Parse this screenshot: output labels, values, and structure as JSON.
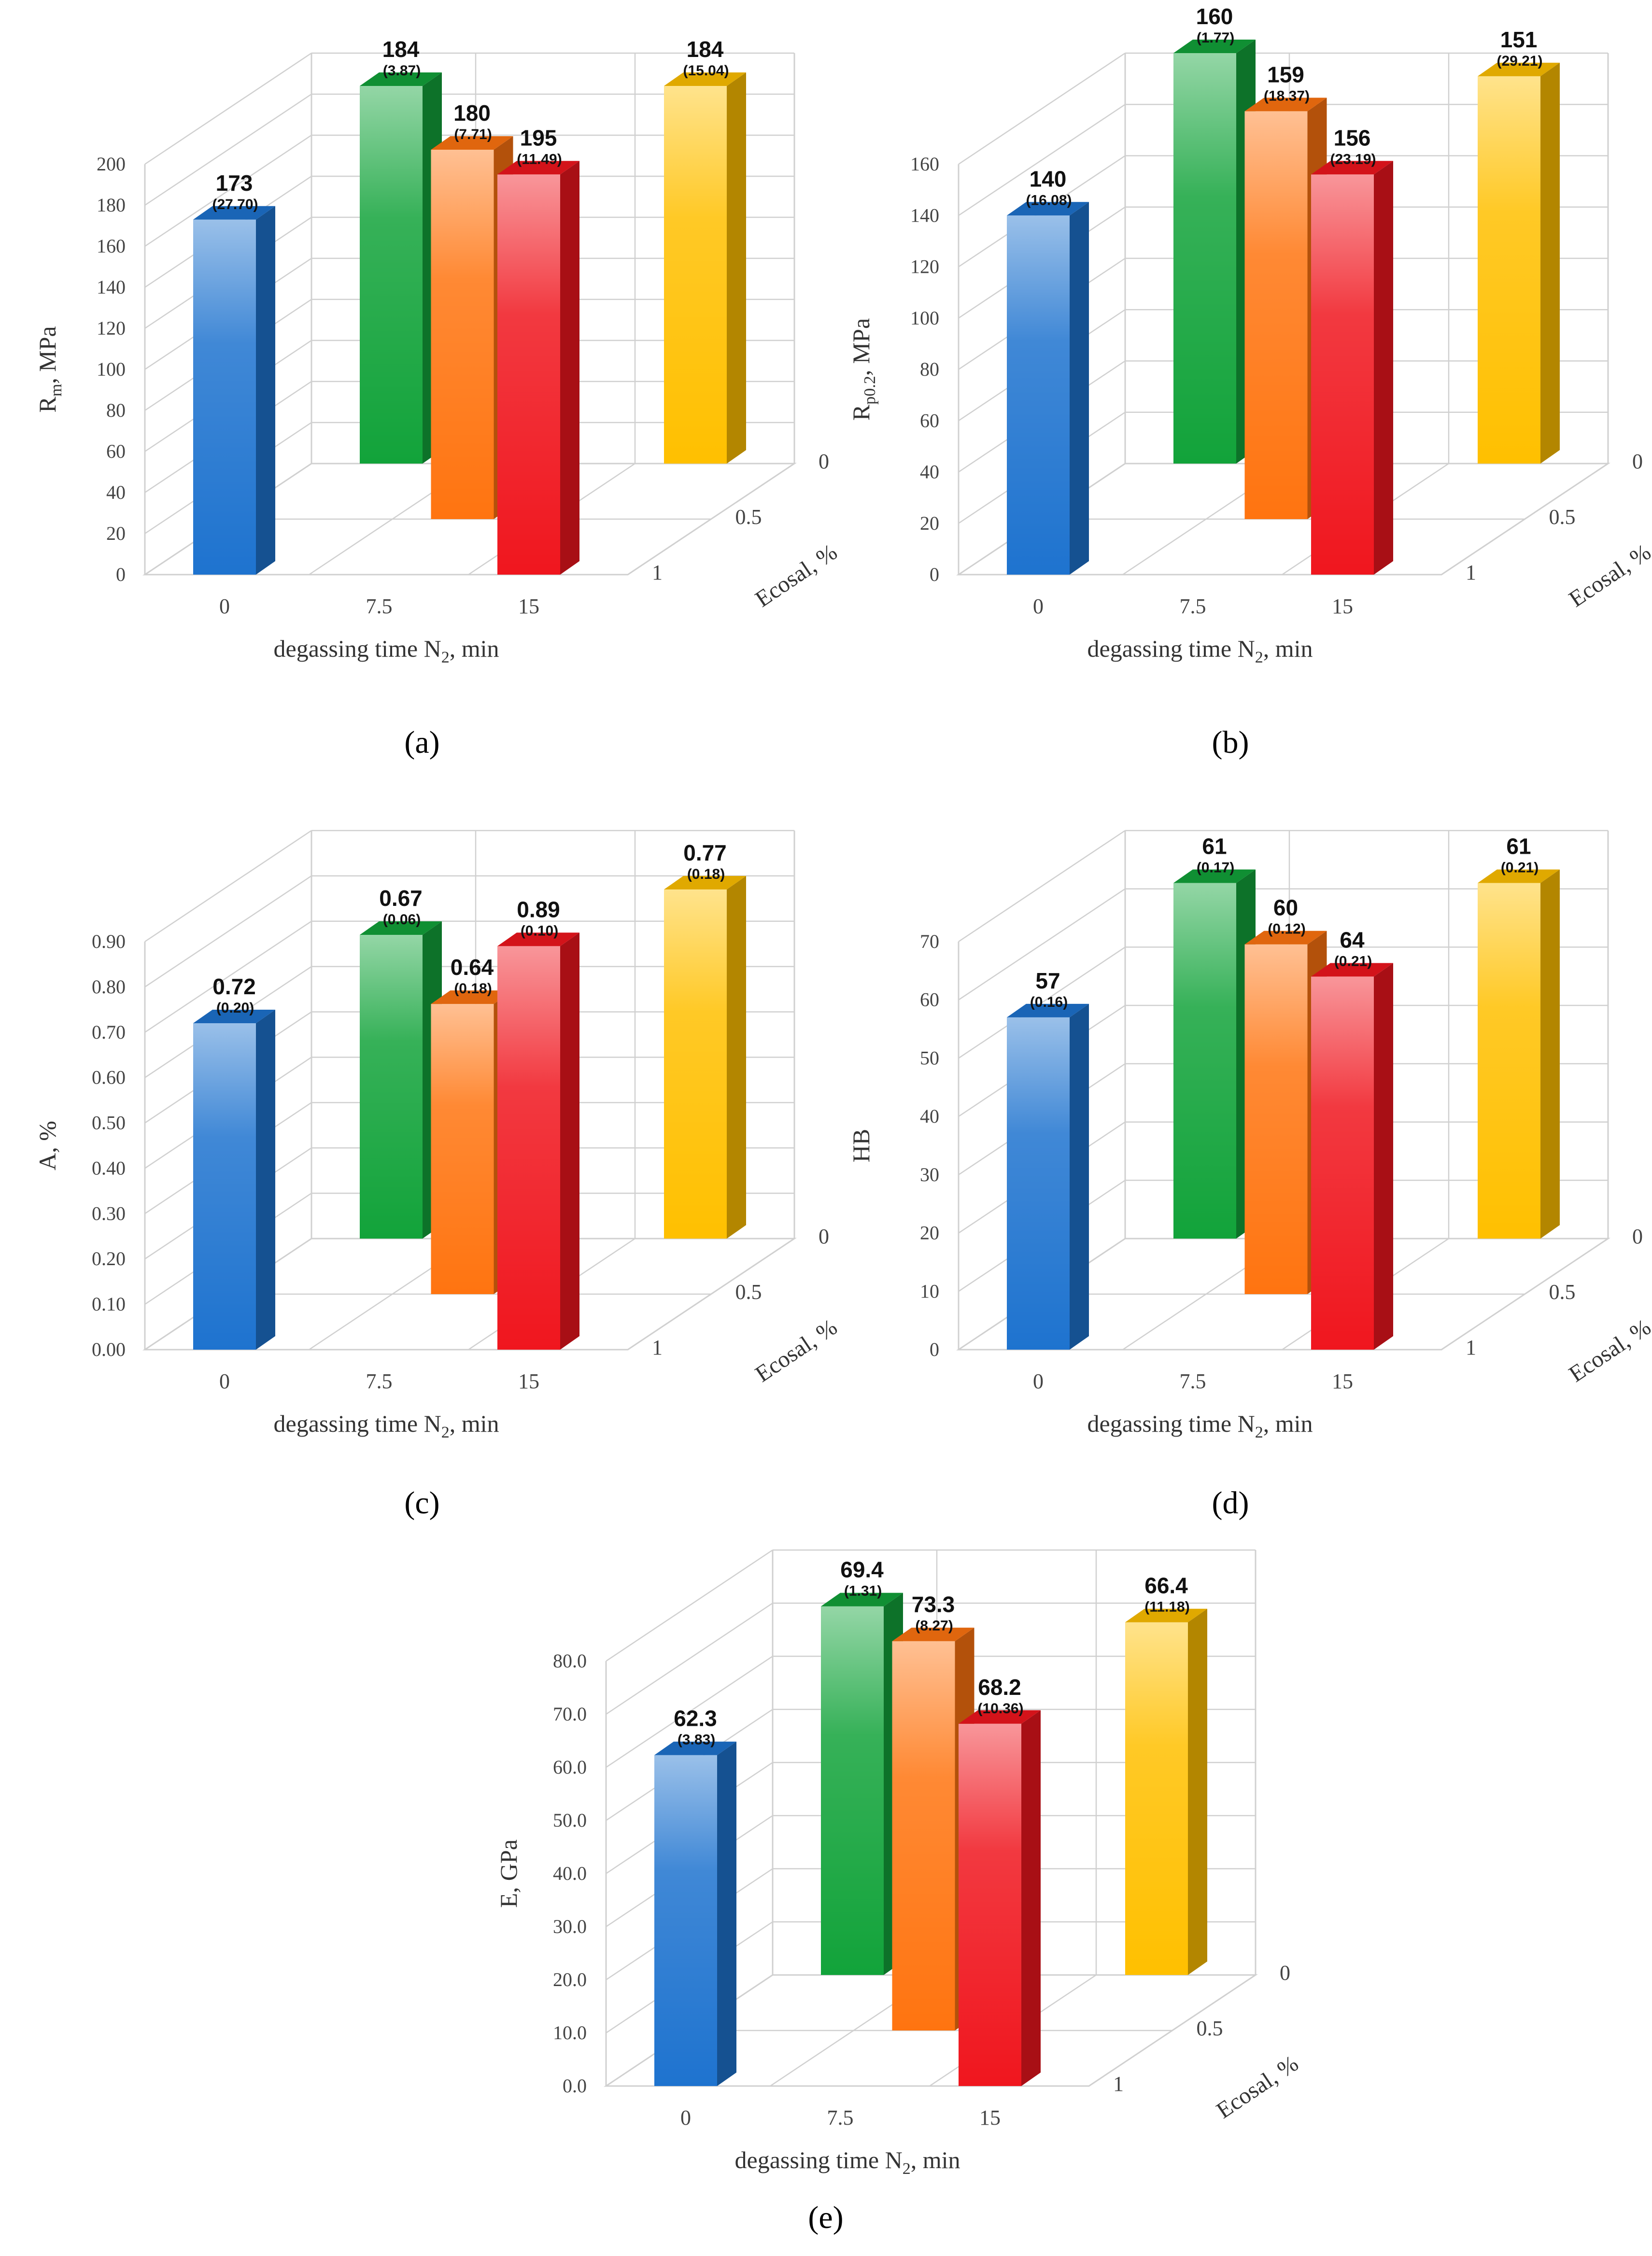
{
  "figure": {
    "panel_labels": [
      "(a)",
      "(b)",
      "(c)",
      "(d)",
      "(e)"
    ]
  },
  "colors": {
    "blue": "#1e73cf",
    "green": "#12a33a",
    "orange": "#ff7410",
    "red": "#f0161e",
    "gold": "#ffc000",
    "grid": "#d0d0d0"
  },
  "chart_data": [
    {
      "panel": "(a)",
      "type": "bar",
      "title": "",
      "ylabel_main": "R",
      "ylabel_sub": "m",
      "ylabel_rest": ", MPa",
      "xlabel_main": "degassing time N",
      "xlabel_sub": "2",
      "xlabel_rest": ", min",
      "zlabel": "Ecosal, %",
      "x_categories": [
        "0",
        "7.5",
        "15"
      ],
      "z_categories": [
        "0",
        "0.5",
        "1"
      ],
      "ylim": [
        0,
        200
      ],
      "y_ticks": [
        "0",
        "20",
        "40",
        "60",
        "80",
        "100",
        "120",
        "140",
        "160",
        "180",
        "200"
      ],
      "bars": [
        {
          "x": "0",
          "ecosal": "1",
          "value": 173,
          "value_label": "173",
          "sd_label": "(27.70)",
          "color": "blue"
        },
        {
          "x": "0",
          "ecosal": "0",
          "value": 184,
          "value_label": "184",
          "sd_label": "(3.87)",
          "color": "green"
        },
        {
          "x": "7.5",
          "ecosal": "0.5",
          "value": 180,
          "value_label": "180",
          "sd_label": "(7.71)",
          "color": "orange"
        },
        {
          "x": "15",
          "ecosal": "1",
          "value": 195,
          "value_label": "195",
          "sd_label": "(11.49)",
          "color": "red"
        },
        {
          "x": "15",
          "ecosal": "0",
          "value": 184,
          "value_label": "184",
          "sd_label": "(15.04)",
          "color": "gold"
        }
      ]
    },
    {
      "panel": "(b)",
      "type": "bar",
      "title": "",
      "ylabel_main": "R",
      "ylabel_sub": "p0.2",
      "ylabel_rest": ", MPa",
      "xlabel_main": "degassing time N",
      "xlabel_sub": "2",
      "xlabel_rest": ", min",
      "zlabel": "Ecosal, %",
      "x_categories": [
        "0",
        "7.5",
        "15"
      ],
      "z_categories": [
        "0",
        "0.5",
        "1"
      ],
      "ylim": [
        0,
        160
      ],
      "y_ticks": [
        "0",
        "20",
        "40",
        "60",
        "80",
        "100",
        "120",
        "140",
        "160"
      ],
      "bars": [
        {
          "x": "0",
          "ecosal": "1",
          "value": 140,
          "value_label": "140",
          "sd_label": "(16.08)",
          "color": "blue"
        },
        {
          "x": "0",
          "ecosal": "0",
          "value": 160,
          "value_label": "160",
          "sd_label": "(1.77)",
          "color": "green"
        },
        {
          "x": "7.5",
          "ecosal": "0.5",
          "value": 159,
          "value_label": "159",
          "sd_label": "(18.37)",
          "color": "orange"
        },
        {
          "x": "15",
          "ecosal": "1",
          "value": 156,
          "value_label": "156",
          "sd_label": "(23.19)",
          "color": "red"
        },
        {
          "x": "15",
          "ecosal": "0",
          "value": 151,
          "value_label": "151",
          "sd_label": "(29.21)",
          "color": "gold"
        }
      ]
    },
    {
      "panel": "(c)",
      "type": "bar",
      "title": "",
      "ylabel_main": "A, %",
      "ylabel_sub": "",
      "ylabel_rest": "",
      "xlabel_main": "degassing time N",
      "xlabel_sub": "2",
      "xlabel_rest": ", min",
      "zlabel": "Ecosal, %",
      "x_categories": [
        "0",
        "7.5",
        "15"
      ],
      "z_categories": [
        "0",
        "0.5",
        "1"
      ],
      "ylim": [
        0,
        0.9
      ],
      "y_ticks": [
        "0.00",
        "0.10",
        "0.20",
        "0.30",
        "0.40",
        "0.50",
        "0.60",
        "0.70",
        "0.80",
        "0.90"
      ],
      "bars": [
        {
          "x": "0",
          "ecosal": "1",
          "value": 0.72,
          "value_label": "0.72",
          "sd_label": "(0.20)",
          "color": "blue"
        },
        {
          "x": "0",
          "ecosal": "0",
          "value": 0.67,
          "value_label": "0.67",
          "sd_label": "(0.06)",
          "color": "green"
        },
        {
          "x": "7.5",
          "ecosal": "0.5",
          "value": 0.64,
          "value_label": "0.64",
          "sd_label": "(0.18)",
          "color": "orange"
        },
        {
          "x": "15",
          "ecosal": "1",
          "value": 0.89,
          "value_label": "0.89",
          "sd_label": "(0.10)",
          "color": "red"
        },
        {
          "x": "15",
          "ecosal": "0",
          "value": 0.77,
          "value_label": "0.77",
          "sd_label": "(0.18)",
          "color": "gold"
        }
      ]
    },
    {
      "panel": "(d)",
      "type": "bar",
      "title": "",
      "ylabel_main": "HB",
      "ylabel_sub": "",
      "ylabel_rest": "",
      "xlabel_main": "degassing time N",
      "xlabel_sub": "2",
      "xlabel_rest": ", min",
      "zlabel": "Ecosal, %",
      "x_categories": [
        "0",
        "7.5",
        "15"
      ],
      "z_categories": [
        "0",
        "0.5",
        "1"
      ],
      "ylim": [
        0,
        70
      ],
      "y_ticks": [
        "0",
        "10",
        "20",
        "30",
        "40",
        "50",
        "60",
        "70"
      ],
      "bars": [
        {
          "x": "0",
          "ecosal": "1",
          "value": 57,
          "value_label": "57",
          "sd_label": "(0.16)",
          "color": "blue"
        },
        {
          "x": "0",
          "ecosal": "0",
          "value": 61,
          "value_label": "61",
          "sd_label": "(0.17)",
          "color": "green"
        },
        {
          "x": "7.5",
          "ecosal": "0.5",
          "value": 60,
          "value_label": "60",
          "sd_label": "(0.12)",
          "color": "orange"
        },
        {
          "x": "15",
          "ecosal": "1",
          "value": 64,
          "value_label": "64",
          "sd_label": "(0.21)",
          "color": "red"
        },
        {
          "x": "15",
          "ecosal": "0",
          "value": 61,
          "value_label": "61",
          "sd_label": "(0.21)",
          "color": "gold"
        }
      ]
    },
    {
      "panel": "(e)",
      "type": "bar",
      "title": "",
      "ylabel_main": "E, GPa",
      "ylabel_sub": "",
      "ylabel_rest": "",
      "xlabel_main": "degassing time N",
      "xlabel_sub": "2",
      "xlabel_rest": ", min",
      "zlabel": "Ecosal, %",
      "x_categories": [
        "0",
        "7.5",
        "15"
      ],
      "z_categories": [
        "0",
        "0.5",
        "1"
      ],
      "ylim": [
        0,
        80
      ],
      "y_ticks": [
        "0.0",
        "10.0",
        "20.0",
        "30.0",
        "40.0",
        "50.0",
        "60.0",
        "70.0",
        "80.0"
      ],
      "bars": [
        {
          "x": "0",
          "ecosal": "1",
          "value": 62.3,
          "value_label": "62.3",
          "sd_label": "(3.83)",
          "color": "blue"
        },
        {
          "x": "0",
          "ecosal": "0",
          "value": 69.4,
          "value_label": "69.4",
          "sd_label": "(1.31)",
          "color": "green"
        },
        {
          "x": "7.5",
          "ecosal": "0.5",
          "value": 73.3,
          "value_label": "73.3",
          "sd_label": "(8.27)",
          "color": "orange"
        },
        {
          "x": "15",
          "ecosal": "1",
          "value": 68.2,
          "value_label": "68.2",
          "sd_label": "(10.36)",
          "color": "red"
        },
        {
          "x": "15",
          "ecosal": "0",
          "value": 66.4,
          "value_label": "66.4",
          "sd_label": "(11.18)",
          "color": "gold"
        }
      ]
    }
  ]
}
